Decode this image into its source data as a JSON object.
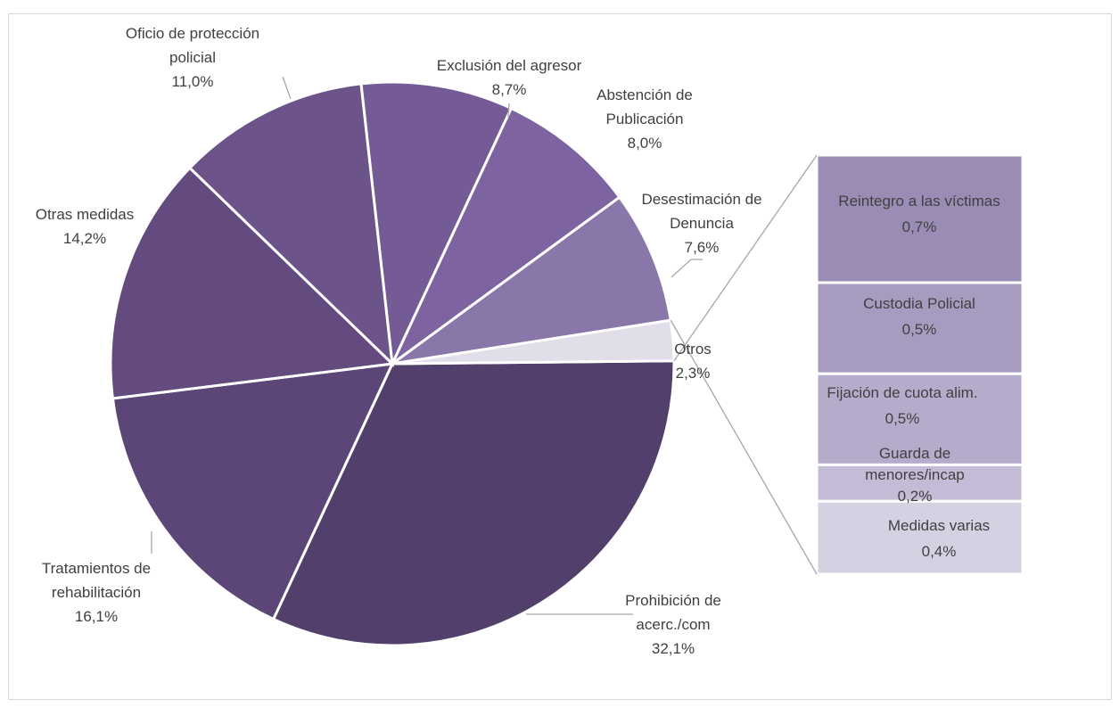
{
  "chart_data": {
    "type": "pie",
    "title": "",
    "slices": [
      {
        "label": "Prohibición de acerc./com",
        "value": 32.1,
        "display": "32,1%",
        "color": "#523f6c"
      },
      {
        "label": "Tratamientos de rehabilitación",
        "value": 16.1,
        "display": "16,1%",
        "color": "#5c4678"
      },
      {
        "label": "Otras medidas",
        "value": 14.2,
        "display": "14,2%",
        "color": "#634b80"
      },
      {
        "label": "Oficio de protección policial",
        "value": 11.0,
        "display": "11,0%",
        "color": "#6c548b"
      },
      {
        "label": "Exclusión del agresor",
        "value": 8.7,
        "display": "8,7%",
        "color": "#755b96"
      },
      {
        "label": "Abstención de Publicación",
        "value": 8.0,
        "display": "8,0%",
        "color": "#7d63a0"
      },
      {
        "label": "Desestimación de Denuncia",
        "value": 7.6,
        "display": "7,6%",
        "color": "#8a77aa"
      },
      {
        "label": "Otros",
        "value": 2.3,
        "display": "2,3%",
        "color": "#e1dde9"
      }
    ],
    "breakdown": {
      "of": "Otros",
      "items": [
        {
          "label": "Reintegro a las víctimas",
          "value": 0.7,
          "display": "0,7%",
          "color": "#9a8cb5"
        },
        {
          "label": "Custodia Policial",
          "value": 0.5,
          "display": "0,5%",
          "color": "#a79bc0"
        },
        {
          "label": "Fijación de cuota alim.",
          "value": 0.5,
          "display": "0,5%",
          "color": "#b5abcb"
        },
        {
          "label": "Guarda de menores/incap",
          "value": 0.2,
          "display": "0,2%",
          "color": "#c4bcd6"
        },
        {
          "label": "Medidas varias",
          "value": 0.4,
          "display": "0,4%",
          "color": "#d5d1e2"
        }
      ]
    }
  }
}
